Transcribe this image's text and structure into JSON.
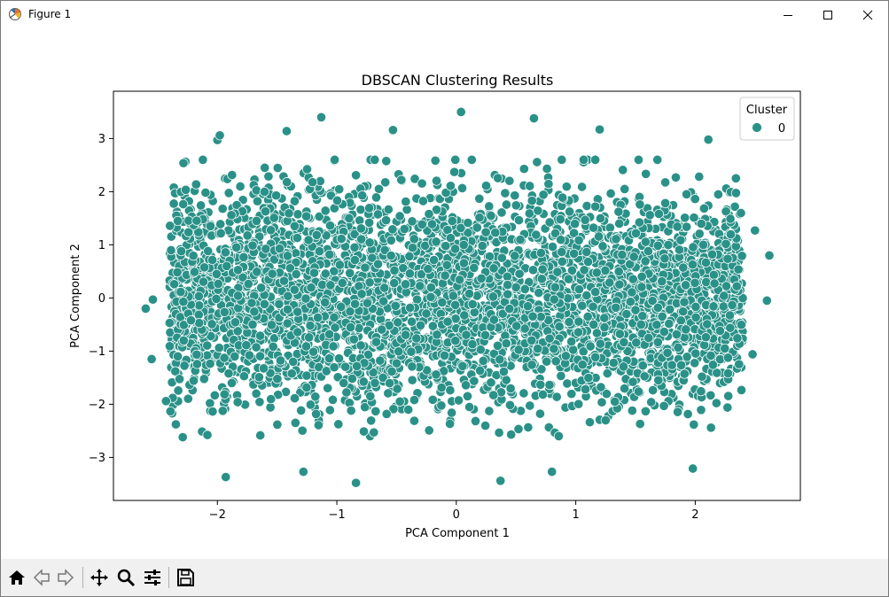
{
  "window": {
    "title": "Figure 1",
    "icon": "matplotlib-figure-icon",
    "controls": [
      "minimize-icon",
      "maximize-icon",
      "close-icon"
    ]
  },
  "toolbar": {
    "buttons": [
      "home-icon",
      "back-arrow-icon",
      "forward-arrow-icon",
      "pan-icon",
      "zoom-icon",
      "configure-subplots-icon",
      "save-icon"
    ]
  },
  "chart_data": {
    "type": "scatter",
    "title": "DBSCAN Clustering Results",
    "xlabel": "PCA Component 1",
    "ylabel": "PCA Component 2",
    "xlim": [
      -2.87,
      2.88
    ],
    "ylim": [
      -3.81,
      3.89
    ],
    "xticks": [
      -2,
      -1,
      0,
      1,
      2
    ],
    "yticks": [
      -3,
      -2,
      -1,
      0,
      1,
      2,
      3
    ],
    "xtick_labels": [
      "−2",
      "−1",
      "0",
      "1",
      "2"
    ],
    "ytick_labels": [
      "−3",
      "−2",
      "−1",
      "0",
      "1",
      "2",
      "3"
    ],
    "grid": false,
    "legend": {
      "title": "Cluster",
      "placement": "top-right",
      "entries": [
        {
          "label": "0",
          "color": "#2a9188"
        }
      ]
    },
    "series": [
      {
        "name": "0",
        "color": "#2a9188",
        "edgecolor": "#ffffff",
        "distribution": {
          "x_range": [
            -2.4,
            2.4
          ],
          "y_range": [
            -2.6,
            2.6
          ]
        },
        "outliers": [
          {
            "x": 0.04,
            "y": 3.5
          },
          {
            "x": -1.13,
            "y": 3.4
          },
          {
            "x": 0.65,
            "y": 3.38
          },
          {
            "x": -0.53,
            "y": 3.16
          },
          {
            "x": 1.2,
            "y": 3.17
          },
          {
            "x": -1.42,
            "y": 3.14
          },
          {
            "x": 2.11,
            "y": 2.98
          },
          {
            "x": -2.0,
            "y": 2.97
          },
          {
            "x": -1.98,
            "y": 3.06
          },
          {
            "x": -2.6,
            "y": -0.2
          },
          {
            "x": -2.55,
            "y": -1.15
          },
          {
            "x": -2.54,
            "y": -0.03
          },
          {
            "x": 2.62,
            "y": 0.8
          },
          {
            "x": 2.6,
            "y": -0.05
          },
          {
            "x": 2.5,
            "y": 1.27
          },
          {
            "x": 2.48,
            "y": -1.06
          },
          {
            "x": -1.93,
            "y": -3.37
          },
          {
            "x": -0.84,
            "y": -3.48
          },
          {
            "x": 0.37,
            "y": -3.44
          },
          {
            "x": 1.98,
            "y": -3.21
          },
          {
            "x": -1.28,
            "y": -3.27
          },
          {
            "x": 0.8,
            "y": -3.27
          },
          {
            "x": -2.29,
            "y": -2.62
          },
          {
            "x": -2.43,
            "y": -1.94
          }
        ]
      }
    ]
  }
}
